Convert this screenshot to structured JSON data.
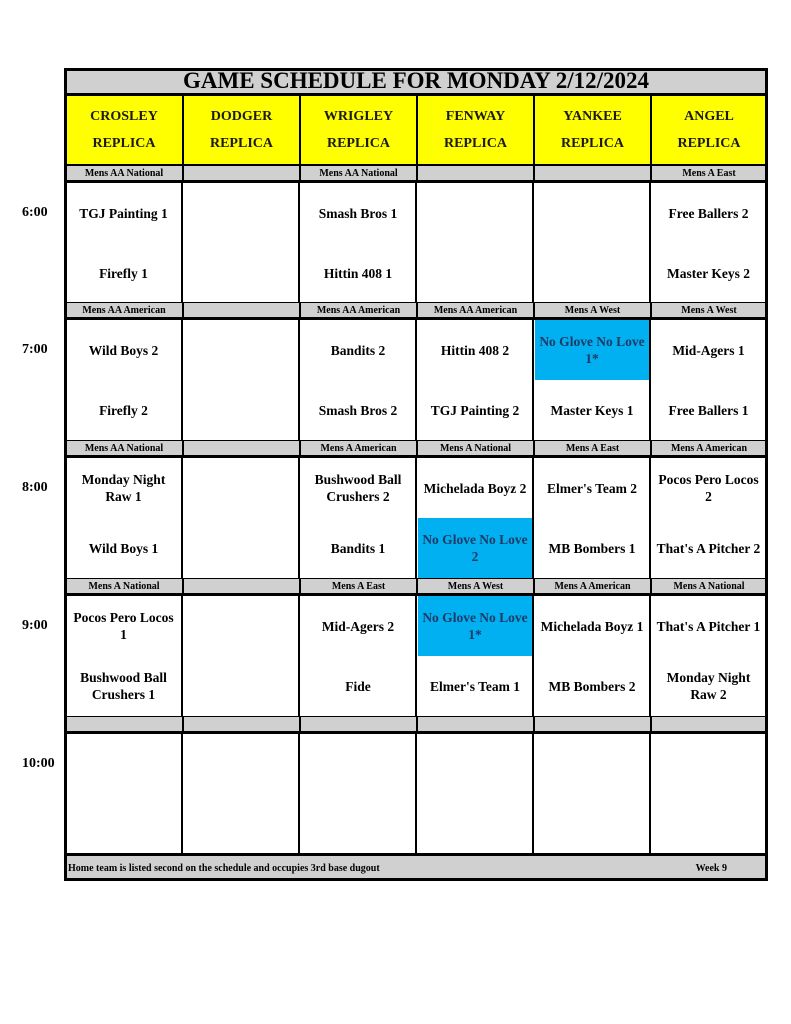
{
  "title": "GAME SCHEDULE FOR MONDAY 2/12/2024",
  "fields": [
    [
      "CROSLEY",
      "REPLICA"
    ],
    [
      "DODGER",
      "REPLICA"
    ],
    [
      "WRIGLEY",
      "REPLICA"
    ],
    [
      "FENWAY",
      "REPLICA"
    ],
    [
      "YANKEE",
      "REPLICA"
    ],
    [
      "ANGEL",
      "REPLICA"
    ]
  ],
  "highlight_color": "#00b0f0",
  "slots": [
    {
      "time": "6:00",
      "divisions": [
        "Mens AA National",
        "",
        "Mens AA National",
        "",
        "",
        "Mens A East"
      ],
      "games": [
        [
          "TGJ Painting 1",
          "Firefly 1"
        ],
        [
          "",
          ""
        ],
        [
          "Smash Bros 1",
          "Hittin 408 1"
        ],
        [
          "",
          ""
        ],
        [
          "",
          ""
        ],
        [
          "Free Ballers 2",
          "Master Keys 2"
        ]
      ],
      "highlight": []
    },
    {
      "time": "7:00",
      "divisions": [
        "Mens AA American",
        "",
        "Mens AA American",
        "Mens AA American",
        "Mens A West",
        "Mens A West"
      ],
      "games": [
        [
          "Wild Boys 2",
          "Firefly 2"
        ],
        [
          "",
          ""
        ],
        [
          "Bandits 2",
          "Smash Bros 2"
        ],
        [
          "Hittin 408 2",
          "TGJ Painting 2"
        ],
        [
          "No Glove No Love 1*",
          "Master Keys 1"
        ],
        [
          "Mid-Agers 1",
          "Free Ballers 1"
        ]
      ],
      "highlight": [
        [
          4,
          0
        ]
      ]
    },
    {
      "time": "8:00",
      "divisions": [
        "Mens AA National",
        "",
        "Mens A American",
        "Mens A National",
        "Mens A East",
        "Mens A American"
      ],
      "games": [
        [
          "Monday Night Raw 1",
          "Wild Boys 1"
        ],
        [
          "",
          ""
        ],
        [
          "Bushwood Ball Crushers 2",
          "Bandits 1"
        ],
        [
          "Michelada Boyz 2",
          "No Glove No Love 2"
        ],
        [
          "Elmer's Team 2",
          "MB Bombers 1"
        ],
        [
          "Pocos Pero Locos 2",
          "That's A Pitcher 2"
        ]
      ],
      "highlight": [
        [
          3,
          1
        ]
      ]
    },
    {
      "time": "9:00",
      "divisions": [
        "Mens A National",
        "",
        "Mens A East",
        "Mens A West",
        "Mens A American",
        "Mens A National"
      ],
      "games": [
        [
          "Pocos Pero Locos 1",
          "Bushwood Ball Crushers 1"
        ],
        [
          "",
          ""
        ],
        [
          "Mid-Agers 2",
          "Fide"
        ],
        [
          "No Glove No Love 1*",
          "Elmer's Team 1"
        ],
        [
          "Michelada Boyz 1",
          "MB Bombers 2"
        ],
        [
          "That's A Pitcher 1",
          "Monday Night Raw 2"
        ]
      ],
      "highlight": [
        [
          3,
          0
        ]
      ]
    },
    {
      "time": "10:00",
      "divisions": [
        "",
        "",
        "",
        "",
        "",
        ""
      ],
      "games": [
        [
          "",
          ""
        ],
        [
          "",
          ""
        ],
        [
          "",
          ""
        ],
        [
          "",
          ""
        ],
        [
          "",
          ""
        ],
        [
          "",
          ""
        ]
      ],
      "highlight": []
    }
  ],
  "footer": {
    "note": "Home team is listed second on the schedule and occupies 3rd base dugout",
    "week": "Week 9"
  }
}
